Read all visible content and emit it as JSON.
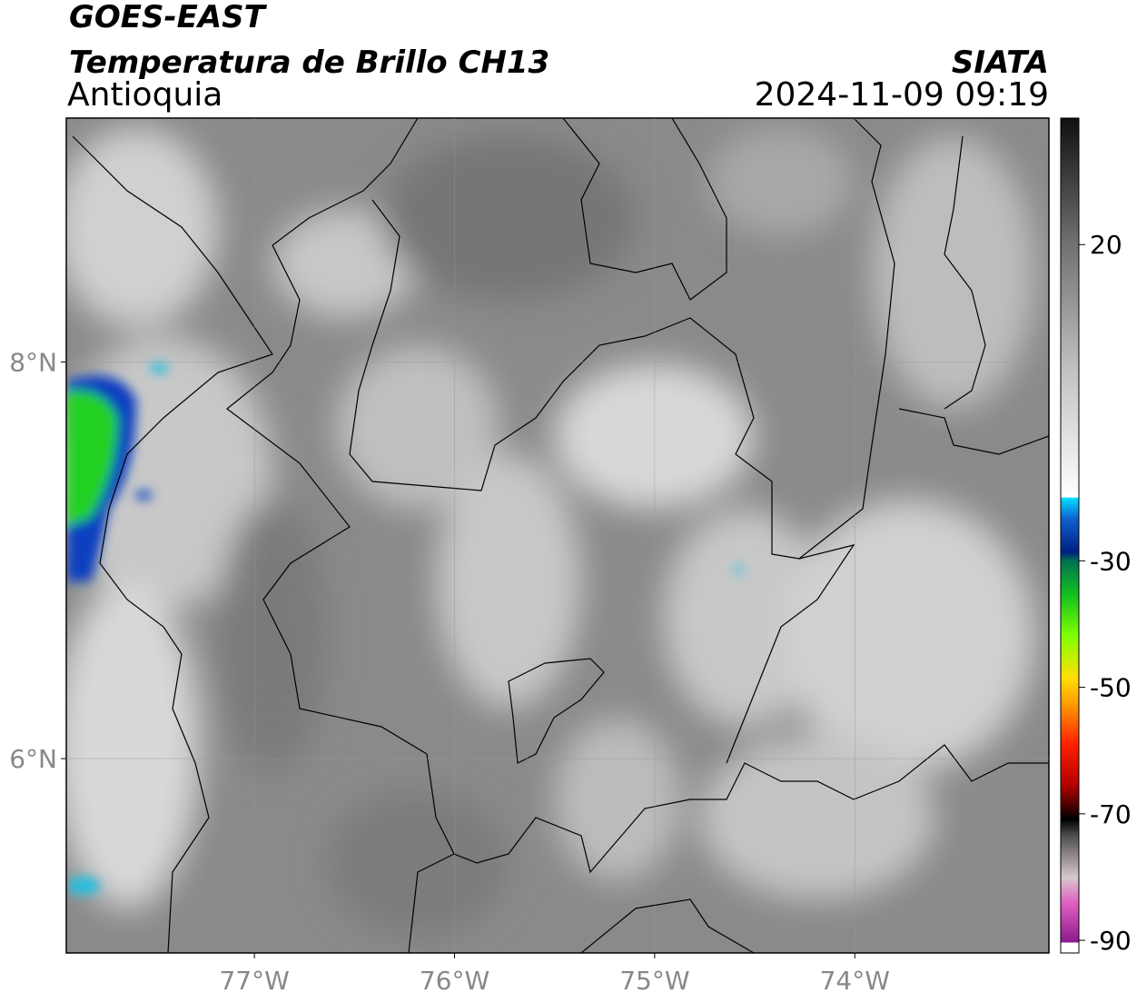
{
  "header": {
    "title": "GOES-EAST",
    "subtitle": "Temperatura de Brillo CH13",
    "region": "Antioquia",
    "source": "SIATA",
    "timestamp": "2024-11-09 09:19"
  },
  "map": {
    "xlim": [
      -77.94,
      -73.03
    ],
    "ylim": [
      5.02,
      9.23
    ],
    "xticks": [
      {
        "value": -77,
        "label": "77°W"
      },
      {
        "value": -76,
        "label": "76°W"
      },
      {
        "value": -75,
        "label": "75°W"
      },
      {
        "value": -74,
        "label": "74°W"
      }
    ],
    "yticks": [
      {
        "value": 8,
        "label": "8°N"
      },
      {
        "value": 6,
        "label": "6°N"
      }
    ],
    "grid": true
  },
  "colorbar": {
    "clim": [
      -92,
      40
    ],
    "ticks": [
      20,
      -30,
      -50,
      -70,
      -90
    ]
  }
}
